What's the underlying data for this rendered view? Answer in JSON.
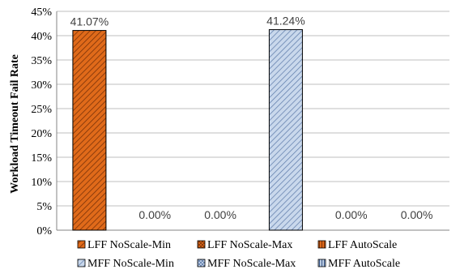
{
  "chart_data": {
    "type": "bar",
    "ylabel": "Workload Timeout Fail Rate",
    "xlabel": "",
    "ylim": [
      0,
      45
    ],
    "yticks": [
      "0%",
      "5%",
      "10%",
      "15%",
      "20%",
      "25%",
      "30%",
      "35%",
      "40%",
      "45%"
    ],
    "grid": true,
    "legend_position": "bottom",
    "series": [
      {
        "name": "LFF NoScale-Min",
        "value": 41.07,
        "label": "41.07%",
        "color": "#e06a1a",
        "pattern": "diag"
      },
      {
        "name": "LFF NoScale-Max",
        "value": 0.0,
        "label": "0.00%",
        "color": "#e06a1a",
        "pattern": "cross"
      },
      {
        "name": "LFF AutoScale",
        "value": 0.0,
        "label": "0.00%",
        "color": "#e06a1a",
        "pattern": "vert"
      },
      {
        "name": "MFF NoScale-Min",
        "value": 41.24,
        "label": "41.24%",
        "color": "#b8cbe4",
        "pattern": "diag"
      },
      {
        "name": "MFF NoScale-Max",
        "value": 0.0,
        "label": "0.00%",
        "color": "#b8cbe4",
        "pattern": "cross"
      },
      {
        "name": "MFF AutoScale",
        "value": 0.0,
        "label": "0.00%",
        "color": "#b8cbe4",
        "pattern": "vert"
      }
    ]
  }
}
